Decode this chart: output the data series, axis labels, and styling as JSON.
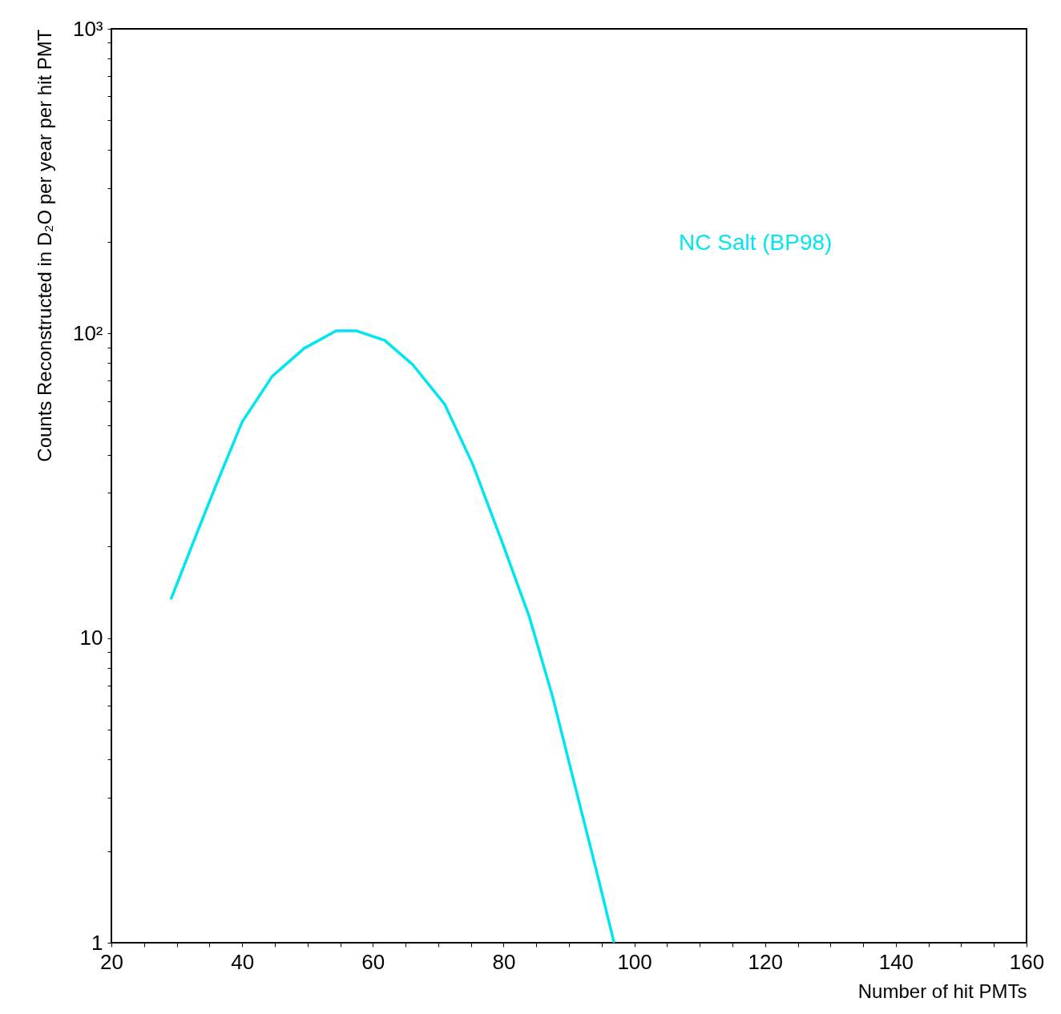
{
  "chart_data": {
    "type": "line",
    "xlabel": "Number of hit PMTs",
    "ylabel": "Counts Reconstructed in D₂O per year per hit PMT",
    "log": "y",
    "grid": false,
    "legend": false,
    "marker": "none",
    "line_style": "solid",
    "xlim": [
      20,
      160
    ],
    "xticks": [
      20,
      {
        "value": 25,
        "label": null
      },
      40,
      {
        "value": 30,
        "label": null
      },
      {
        "value": 35,
        "label": null
      },
      {
        "value": 45,
        "label": null
      },
      {
        "value": 50,
        "label": null
      },
      {
        "value": 55,
        "label": null
      },
      60,
      {
        "value": 65,
        "label": null
      },
      {
        "value": 70,
        "label": null
      },
      {
        "value": 75,
        "label": null
      },
      80,
      {
        "value": 85,
        "label": null
      },
      {
        "value": 90,
        "label": null
      },
      {
        "value": 95,
        "label": null
      },
      100,
      {
        "value": 105,
        "label": null
      },
      {
        "value": 110,
        "label": null
      },
      {
        "value": 115,
        "label": null
      },
      120,
      {
        "value": 125,
        "label": null
      },
      {
        "value": 130,
        "label": null
      },
      {
        "value": 135,
        "label": null
      },
      140,
      {
        "value": 145,
        "label": null
      },
      {
        "value": 150,
        "label": null
      },
      {
        "value": 155,
        "label": null
      },
      160
    ],
    "ylim": [
      1,
      1000
    ],
    "yticks": [
      1,
      {
        "value": 2,
        "label": null
      },
      {
        "value": 3,
        "label": null
      },
      {
        "value": 4,
        "label": null
      },
      {
        "value": 5,
        "label": null
      },
      {
        "value": 6,
        "label": null
      },
      {
        "value": 7,
        "label": null
      },
      {
        "value": 8,
        "label": null
      },
      {
        "value": 9,
        "label": null
      },
      10,
      {
        "value": 20,
        "label": null
      },
      {
        "value": 30,
        "label": null
      },
      {
        "value": 40,
        "label": null
      },
      {
        "value": 50,
        "label": null
      },
      {
        "value": 60,
        "label": null
      },
      {
        "value": 70,
        "label": null
      },
      {
        "value": 80,
        "label": null
      },
      {
        "value": 90,
        "label": null
      },
      {
        "value": 100,
        "label": "10²"
      },
      {
        "value": 200,
        "label": null
      },
      {
        "value": 300,
        "label": null
      },
      {
        "value": 400,
        "label": null
      },
      {
        "value": 500,
        "label": null
      },
      {
        "value": 600,
        "label": null
      },
      {
        "value": 700,
        "label": null
      },
      {
        "value": 800,
        "label": null
      },
      {
        "value": 900,
        "label": null
      },
      {
        "value": 1000,
        "label": "10³"
      }
    ],
    "series": [
      {
        "name": "NC Salt (BP98)",
        "color": "#00e6f0",
        "x": [
          29.1,
          33.6,
          36.3,
          40,
          44.6,
          49.5,
          54.4,
          57.5,
          61.8,
          66.1,
          71,
          75.3,
          79.9,
          83.9,
          87.5,
          91.2,
          94.3,
          96.9
        ],
        "values": [
          13.4,
          23.6,
          32.9,
          51.2,
          72.3,
          89.4,
          102,
          102,
          95,
          79,
          58.5,
          37.1,
          20.3,
          11.8,
          6.42,
          3.1,
          1.69,
          1.0
        ]
      }
    ]
  }
}
